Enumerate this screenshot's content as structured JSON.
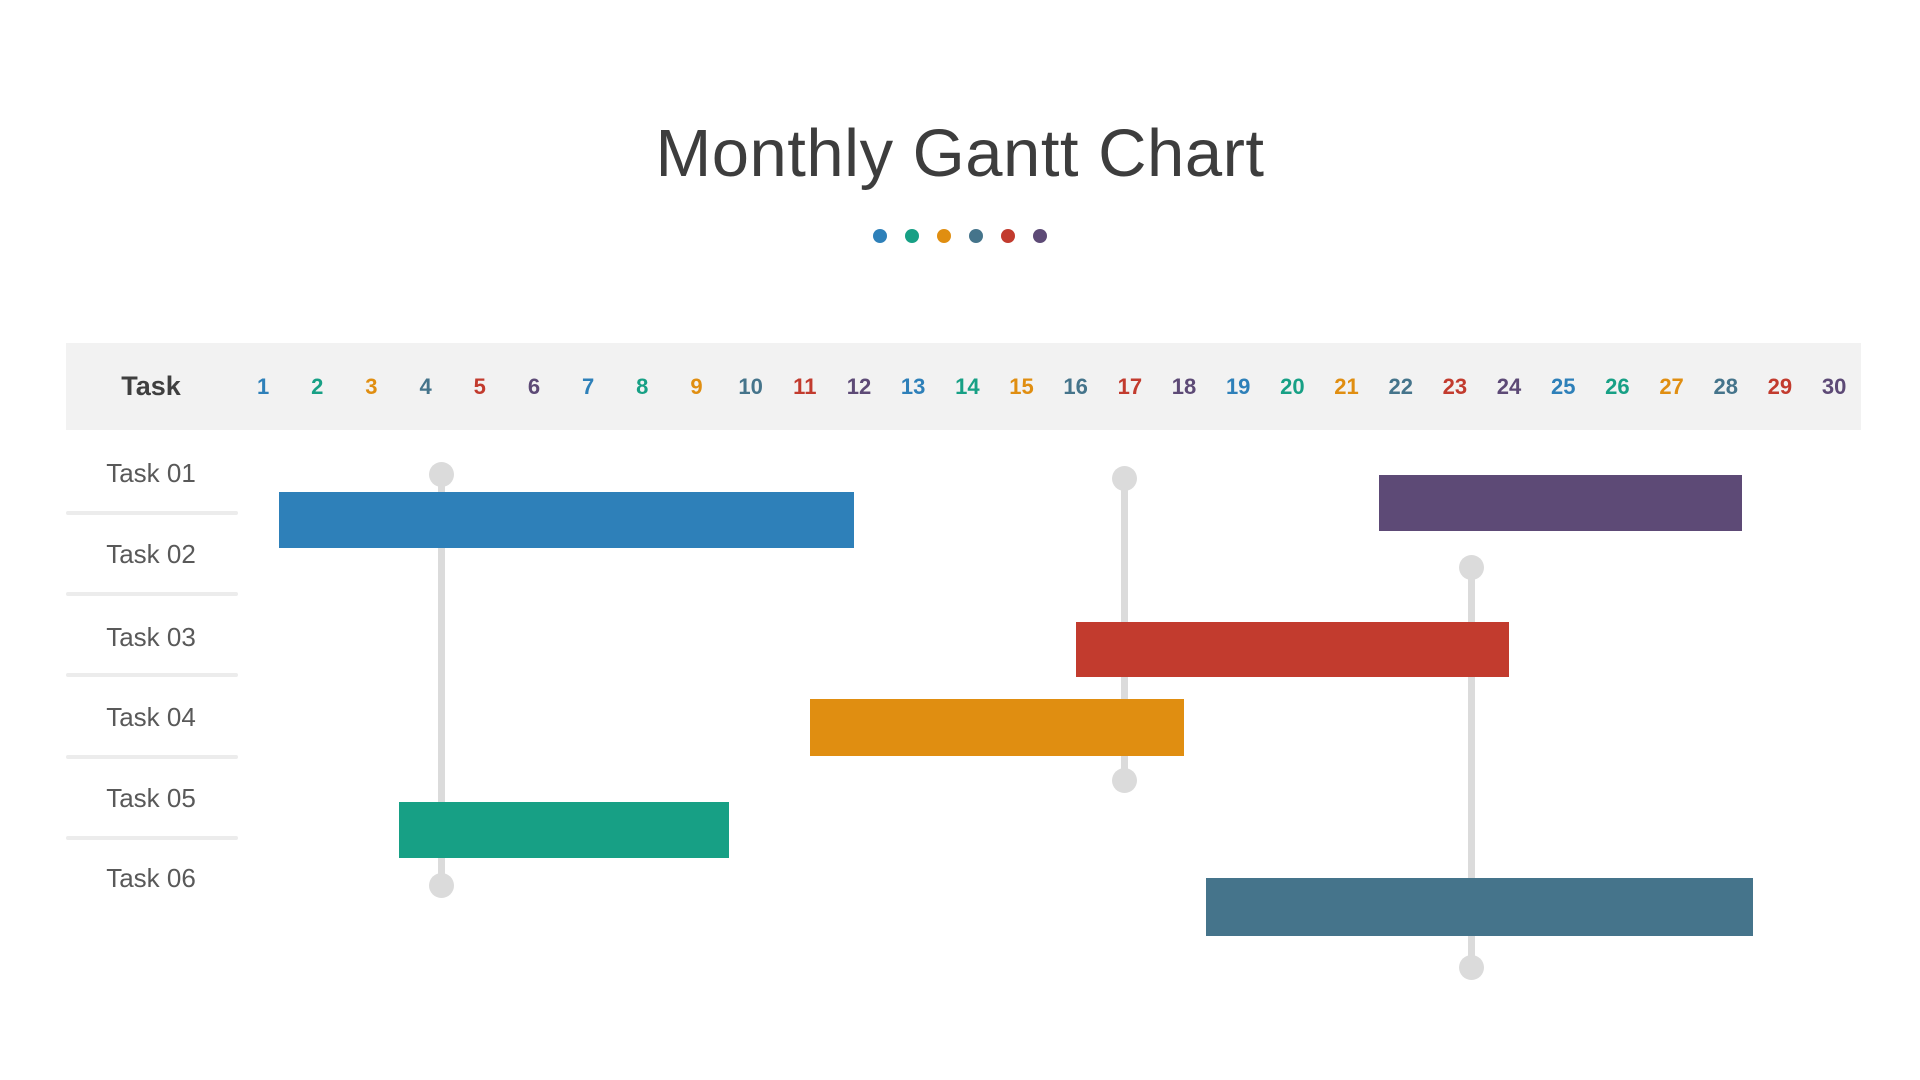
{
  "title": "Monthly Gantt Chart",
  "palette": {
    "blue": "#2e80b9",
    "green": "#17a085",
    "orange": "#e08e11",
    "steel": "#45748b",
    "red": "#c23b2e",
    "purple": "#5d4a76"
  },
  "decor_dots": [
    "blue",
    "green",
    "orange",
    "steel",
    "red",
    "purple"
  ],
  "header": {
    "task_label": "Task",
    "days": [
      1,
      2,
      3,
      4,
      5,
      6,
      7,
      8,
      9,
      10,
      11,
      12,
      13,
      14,
      15,
      16,
      17,
      18,
      19,
      20,
      21,
      22,
      23,
      24,
      25,
      26,
      27,
      28,
      29,
      30
    ],
    "day_color_cycle": [
      "blue",
      "green",
      "orange",
      "steel",
      "red",
      "purple"
    ]
  },
  "tasks": [
    "Task 01",
    "Task 02",
    "Task 03",
    "Task 04",
    "Task 05",
    "Task 06"
  ],
  "chart_data": {
    "type": "gantt",
    "title": "Monthly Gantt Chart",
    "x_axis": {
      "unit": "day of month",
      "min": 1,
      "max": 30,
      "ticks_every": 1
    },
    "rows": [
      "Task 01",
      "Task 02",
      "Task 03",
      "Task 04",
      "Task 05",
      "Task 06"
    ],
    "bars": [
      {
        "task": "Task 01",
        "row": 1,
        "start_day": 1.8,
        "end_day": 12.4,
        "color": "blue"
      },
      {
        "task": "Task 01",
        "row": 1,
        "start_day": 22.1,
        "end_day": 28.8,
        "color": "purple"
      },
      {
        "task": "Task 03",
        "row": 3,
        "start_day": 16.5,
        "end_day": 24.5,
        "color": "red"
      },
      {
        "task": "Task 04",
        "row": 4,
        "start_day": 11.6,
        "end_day": 18.5,
        "color": "orange"
      },
      {
        "task": "Task 05",
        "row": 5,
        "start_day": 4.0,
        "end_day": 10.1,
        "color": "green"
      },
      {
        "task": "Task 06",
        "row": 6,
        "start_day": 18.9,
        "end_day": 29.0,
        "color": "steel"
      }
    ],
    "milestones": [
      {
        "day": 4.8,
        "from_row": 1,
        "to_row": 6
      },
      {
        "day": 17.4,
        "from_row": 1,
        "to_row": 5
      },
      {
        "day": 23.8,
        "from_row": 2,
        "to_row": 7
      }
    ],
    "legend": null,
    "grid": false
  }
}
